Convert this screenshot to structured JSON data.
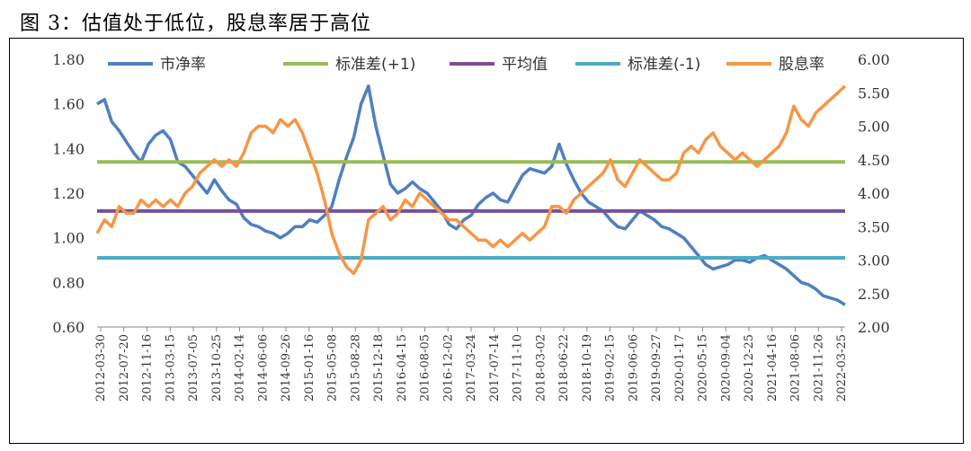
{
  "title": "图 3：估值处于低位，股息率居于高位",
  "chart_data": {
    "type": "line",
    "title": "图 3：估值处于低位，股息率居于高位",
    "xlabel": "",
    "ylabel_left": "",
    "ylabel_right": "",
    "ylim_left": [
      0.6,
      1.8
    ],
    "ylim_right": [
      2.0,
      6.0
    ],
    "yticks_left": [
      "0.60",
      "0.80",
      "1.00",
      "1.20",
      "1.40",
      "1.60",
      "1.80"
    ],
    "yticks_right": [
      "2.00",
      "2.50",
      "3.00",
      "3.50",
      "4.00",
      "4.50",
      "5.00",
      "5.50",
      "6.00"
    ],
    "x_tick_labels": [
      "2012-03-30",
      "2012-07-20",
      "2012-11-16",
      "2013-03-15",
      "2013-07-05",
      "2013-10-25",
      "2014-02-14",
      "2014-06-06",
      "2014-09-26",
      "2015-01-16",
      "2015-05-08",
      "2015-08-28",
      "2015-12-18",
      "2016-04-15",
      "2016-08-05",
      "2016-12-02",
      "2017-03-24",
      "2017-07-14",
      "2017-11-10",
      "2018-03-02",
      "2018-06-22",
      "2018-10-19",
      "2019-02-15",
      "2019-06-06",
      "2019-09-27",
      "2020-01-17",
      "2020-05-15",
      "2020-09-04",
      "2020-12-25",
      "2021-04-16",
      "2021-08-06",
      "2021-11-26",
      "2022-03-25"
    ],
    "legend_position": "top",
    "series": [
      {
        "name": "市净率",
        "axis": "left",
        "color": "#4f7fc0",
        "values": [
          1.6,
          1.62,
          1.52,
          1.48,
          1.43,
          1.38,
          1.34,
          1.42,
          1.46,
          1.48,
          1.44,
          1.34,
          1.32,
          1.28,
          1.24,
          1.2,
          1.26,
          1.21,
          1.17,
          1.15,
          1.09,
          1.06,
          1.05,
          1.03,
          1.02,
          1.0,
          1.02,
          1.05,
          1.05,
          1.08,
          1.07,
          1.1,
          1.14,
          1.26,
          1.36,
          1.45,
          1.6,
          1.68,
          1.5,
          1.37,
          1.24,
          1.2,
          1.22,
          1.25,
          1.22,
          1.2,
          1.16,
          1.12,
          1.06,
          1.04,
          1.08,
          1.1,
          1.15,
          1.18,
          1.2,
          1.17,
          1.16,
          1.22,
          1.28,
          1.31,
          1.3,
          1.29,
          1.32,
          1.42,
          1.33,
          1.26,
          1.2,
          1.16,
          1.14,
          1.12,
          1.08,
          1.05,
          1.04,
          1.08,
          1.12,
          1.1,
          1.08,
          1.05,
          1.04,
          1.02,
          1.0,
          0.96,
          0.92,
          0.88,
          0.86,
          0.87,
          0.88,
          0.9,
          0.9,
          0.89,
          0.91,
          0.92,
          0.9,
          0.88,
          0.86,
          0.83,
          0.8,
          0.79,
          0.77,
          0.74,
          0.73,
          0.72,
          0.7
        ]
      },
      {
        "name": "标准差(+1)",
        "axis": "left",
        "color": "#9bbb59",
        "values": [
          1.34
        ]
      },
      {
        "name": "平均值",
        "axis": "left",
        "color": "#7a4f9a",
        "values": [
          1.12
        ]
      },
      {
        "name": "标准差(-1)",
        "axis": "left",
        "color": "#4bacc6",
        "values": [
          0.91
        ]
      },
      {
        "name": "股息率",
        "axis": "right",
        "color": "#f79646",
        "values": [
          3.4,
          3.6,
          3.5,
          3.8,
          3.7,
          3.7,
          3.9,
          3.8,
          3.9,
          3.8,
          3.9,
          3.8,
          4.0,
          4.1,
          4.3,
          4.4,
          4.5,
          4.4,
          4.5,
          4.4,
          4.6,
          4.9,
          5.0,
          5.0,
          4.9,
          5.1,
          5.0,
          5.1,
          4.9,
          4.6,
          4.3,
          3.9,
          3.4,
          3.1,
          2.9,
          2.8,
          3.0,
          3.6,
          3.7,
          3.8,
          3.6,
          3.7,
          3.9,
          3.8,
          4.0,
          3.9,
          3.8,
          3.7,
          3.6,
          3.6,
          3.5,
          3.4,
          3.3,
          3.3,
          3.2,
          3.3,
          3.2,
          3.3,
          3.4,
          3.3,
          3.4,
          3.5,
          3.8,
          3.8,
          3.7,
          3.9,
          4.0,
          4.1,
          4.2,
          4.3,
          4.5,
          4.2,
          4.1,
          4.3,
          4.5,
          4.4,
          4.3,
          4.2,
          4.2,
          4.3,
          4.6,
          4.7,
          4.6,
          4.8,
          4.9,
          4.7,
          4.6,
          4.5,
          4.6,
          4.5,
          4.4,
          4.5,
          4.6,
          4.7,
          4.9,
          5.3,
          5.1,
          5.0,
          5.2,
          5.3,
          5.4,
          5.5,
          5.6
        ]
      }
    ]
  }
}
